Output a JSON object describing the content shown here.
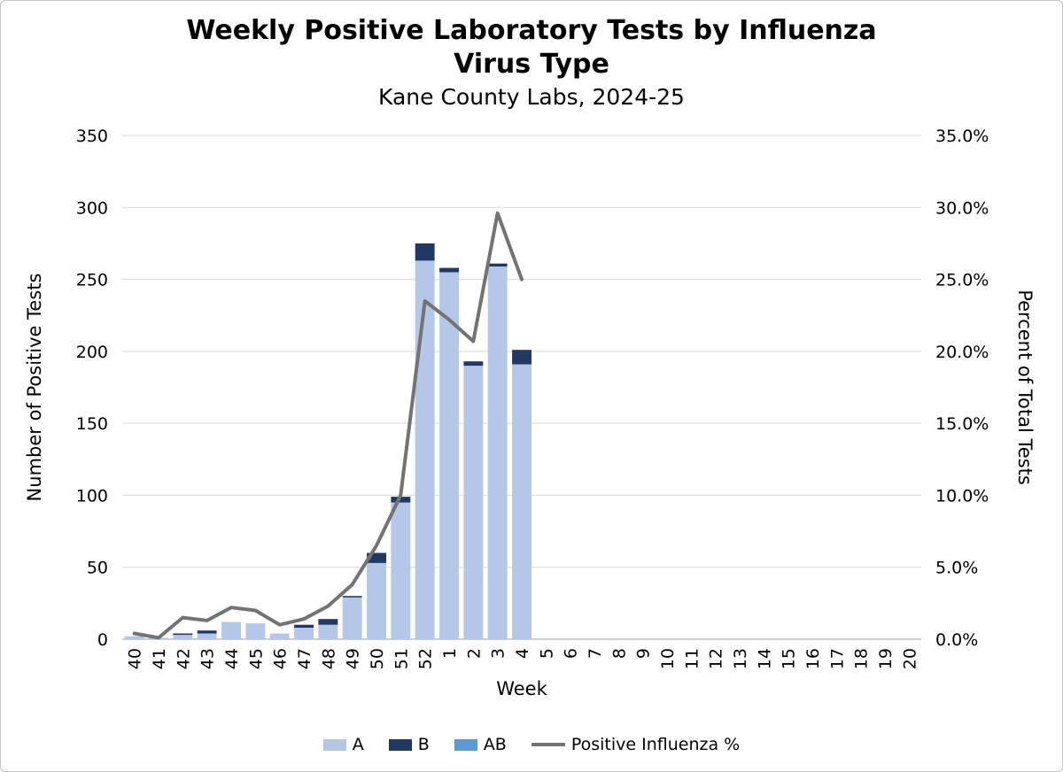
{
  "header": {
    "title_lines": [
      "Weekly Positive Laboratory Tests by Influenza",
      "Virus Type"
    ],
    "subtitle": "Kane County Labs, 2024-25"
  },
  "chart_data": {
    "type": "bar",
    "subtype": "stacked-bars-with-line-overlay",
    "title": "Weekly Positive Laboratory Tests by Influenza Virus Type",
    "subtitle": "Kane County Labs, 2024-25",
    "xlabel": "Week",
    "ylabel_left": "Number of Positive Tests",
    "ylabel_right": "Percent of Total Tests",
    "ylim_left": [
      0,
      350
    ],
    "ylim_right": [
      0,
      35
    ],
    "y_left_ticks": [
      0,
      50,
      100,
      150,
      200,
      250,
      300,
      350
    ],
    "y_right_tick_labels": [
      "0.0%",
      "5.0%",
      "10.0%",
      "15.0%",
      "20.0%",
      "25.0%",
      "30.0%",
      "35.0%"
    ],
    "grid": true,
    "legend_position": "bottom",
    "background_color": "#ffffff",
    "gridline_color": "#d9d9d9",
    "axis_line_color": "#bfbfbf",
    "categories": [
      "40",
      "41",
      "42",
      "43",
      "44",
      "45",
      "46",
      "47",
      "48",
      "49",
      "50",
      "51",
      "52",
      "1",
      "2",
      "3",
      "4",
      "5",
      "6",
      "7",
      "8",
      "9",
      "10",
      "11",
      "12",
      "13",
      "14",
      "15",
      "16",
      "17",
      "18",
      "19",
      "20"
    ],
    "series": [
      {
        "name": "A",
        "type": "bar",
        "color": "#b4c7e7",
        "values": [
          2,
          1,
          3,
          4,
          12,
          11,
          4,
          8,
          10,
          29,
          53,
          95,
          263,
          255,
          190,
          259,
          191,
          0,
          0,
          0,
          0,
          0,
          0,
          0,
          0,
          0,
          0,
          0,
          0,
          0,
          0,
          0,
          0
        ]
      },
      {
        "name": "B",
        "type": "bar",
        "color": "#203864",
        "values": [
          0,
          0,
          1,
          2,
          0,
          0,
          0,
          2,
          4,
          1,
          7,
          4,
          12,
          3,
          3,
          2,
          10,
          0,
          0,
          0,
          0,
          0,
          0,
          0,
          0,
          0,
          0,
          0,
          0,
          0,
          0,
          0,
          0
        ]
      },
      {
        "name": "AB",
        "type": "bar",
        "color": "#5b9bd5",
        "values": [
          0,
          0,
          0,
          0,
          0,
          0,
          0,
          0,
          0,
          0,
          0,
          0,
          0,
          0,
          0,
          0,
          0,
          0,
          0,
          0,
          0,
          0,
          0,
          0,
          0,
          0,
          0,
          0,
          0,
          0,
          0,
          0,
          0
        ]
      },
      {
        "name": "Positive Influenza %",
        "type": "line",
        "axis": "right",
        "color": "#737373",
        "values": [
          0.4,
          0.1,
          1.5,
          1.3,
          2.2,
          2.0,
          1.0,
          1.4,
          2.3,
          3.8,
          6.5,
          10.0,
          23.5,
          22.2,
          20.7,
          29.6,
          25.0,
          null,
          null,
          null,
          null,
          null,
          null,
          null,
          null,
          null,
          null,
          null,
          null,
          null,
          null,
          null,
          null
        ]
      }
    ]
  }
}
